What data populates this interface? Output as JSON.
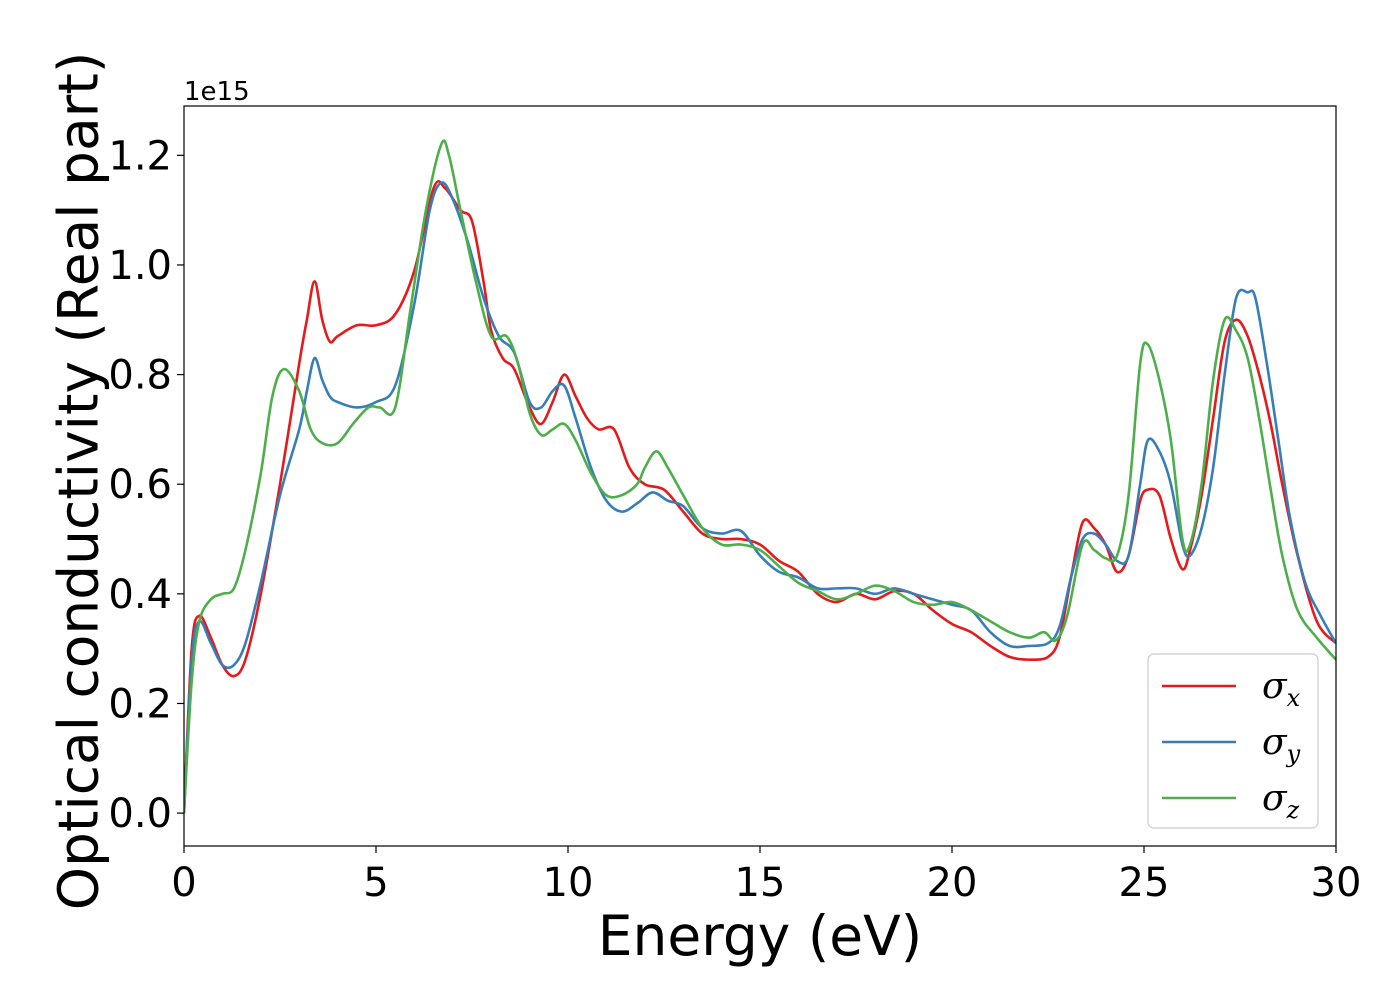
{
  "chart_data": {
    "type": "line",
    "title": "",
    "xlabel": "Energy (eV)",
    "ylabel": "Optical conductivity (Real part)",
    "y_offset_label": "1e15",
    "xlim": [
      0,
      30
    ],
    "ylim": [
      -0.06,
      1.29
    ],
    "xticks": [
      0,
      5,
      10,
      15,
      20,
      25,
      30
    ],
    "yticks": [
      0.0,
      0.2,
      0.4,
      0.6,
      0.8,
      1.0,
      1.2
    ],
    "xtick_labels": [
      "0",
      "5",
      "10",
      "15",
      "20",
      "25",
      "30"
    ],
    "ytick_labels": [
      "0.0",
      "0.2",
      "0.4",
      "0.6",
      "0.8",
      "1.0",
      "1.2"
    ],
    "grid": false,
    "legend_position": "lower-right",
    "series": [
      {
        "name": "σx",
        "symbol": "σ",
        "subscript": "x",
        "color": "#e41a1c",
        "x": [
          0,
          0.2,
          0.4,
          0.7,
          1.0,
          1.3,
          1.6,
          2.0,
          2.5,
          3.0,
          3.2,
          3.4,
          3.6,
          3.8,
          4.0,
          4.5,
          5.0,
          5.5,
          6.0,
          6.5,
          6.8,
          7.2,
          7.5,
          7.8,
          8.0,
          8.3,
          8.6,
          9.0,
          9.3,
          9.6,
          9.9,
          10.2,
          10.5,
          10.8,
          11.2,
          11.6,
          12.0,
          12.5,
          13.0,
          13.5,
          14.0,
          14.5,
          15.0,
          15.5,
          16.0,
          16.5,
          17.0,
          17.5,
          18.0,
          18.5,
          19.0,
          19.5,
          20.0,
          20.5,
          21.0,
          21.5,
          22.0,
          22.5,
          22.8,
          23.1,
          23.4,
          23.7,
          24.0,
          24.3,
          24.6,
          24.9,
          25.1,
          25.4,
          25.7,
          26.0,
          26.2,
          26.5,
          26.8,
          27.1,
          27.4,
          27.7,
          28.0,
          28.3,
          28.6,
          29.0,
          29.5,
          30.0
        ],
        "values": [
          0.0,
          0.3,
          0.36,
          0.32,
          0.27,
          0.25,
          0.28,
          0.4,
          0.6,
          0.82,
          0.9,
          0.97,
          0.9,
          0.86,
          0.87,
          0.89,
          0.89,
          0.91,
          0.99,
          1.14,
          1.14,
          1.1,
          1.08,
          0.97,
          0.88,
          0.83,
          0.81,
          0.74,
          0.71,
          0.75,
          0.8,
          0.76,
          0.72,
          0.7,
          0.7,
          0.63,
          0.6,
          0.59,
          0.55,
          0.51,
          0.5,
          0.5,
          0.49,
          0.46,
          0.44,
          0.4,
          0.385,
          0.4,
          0.39,
          0.405,
          0.4,
          0.37,
          0.345,
          0.33,
          0.305,
          0.285,
          0.28,
          0.285,
          0.32,
          0.43,
          0.53,
          0.52,
          0.49,
          0.44,
          0.47,
          0.57,
          0.59,
          0.58,
          0.5,
          0.445,
          0.48,
          0.58,
          0.72,
          0.86,
          0.9,
          0.87,
          0.8,
          0.71,
          0.6,
          0.47,
          0.35,
          0.31
        ]
      },
      {
        "name": "σy",
        "symbol": "σ",
        "subscript": "y",
        "color": "#377eb8",
        "x": [
          0,
          0.2,
          0.4,
          0.7,
          1.0,
          1.3,
          1.6,
          2.0,
          2.5,
          3.0,
          3.2,
          3.4,
          3.6,
          3.8,
          4.0,
          4.5,
          5.0,
          5.5,
          6.0,
          6.4,
          6.7,
          7.0,
          7.4,
          7.8,
          8.2,
          8.6,
          9.0,
          9.3,
          9.6,
          9.9,
          10.2,
          10.6,
          11.0,
          11.4,
          11.8,
          12.2,
          12.6,
          13.0,
          13.5,
          14.0,
          14.5,
          15.0,
          15.5,
          16.0,
          16.5,
          17.0,
          17.5,
          18.0,
          18.5,
          19.0,
          19.5,
          20.0,
          20.5,
          21.0,
          21.5,
          22.0,
          22.5,
          22.8,
          23.1,
          23.4,
          23.7,
          24.0,
          24.3,
          24.6,
          24.9,
          25.1,
          25.4,
          25.7,
          26.0,
          26.2,
          26.5,
          26.8,
          27.1,
          27.4,
          27.7,
          27.9,
          28.2,
          28.5,
          28.8,
          29.2,
          29.6,
          30.0
        ],
        "values": [
          0.0,
          0.28,
          0.35,
          0.31,
          0.27,
          0.27,
          0.31,
          0.42,
          0.58,
          0.7,
          0.77,
          0.83,
          0.79,
          0.76,
          0.75,
          0.74,
          0.75,
          0.78,
          0.93,
          1.1,
          1.15,
          1.12,
          1.04,
          0.94,
          0.87,
          0.84,
          0.75,
          0.74,
          0.77,
          0.78,
          0.72,
          0.63,
          0.57,
          0.55,
          0.565,
          0.585,
          0.57,
          0.56,
          0.52,
          0.51,
          0.515,
          0.47,
          0.44,
          0.43,
          0.41,
          0.41,
          0.41,
          0.4,
          0.41,
          0.4,
          0.39,
          0.38,
          0.37,
          0.33,
          0.305,
          0.305,
          0.31,
          0.34,
          0.43,
          0.5,
          0.51,
          0.49,
          0.46,
          0.47,
          0.6,
          0.68,
          0.66,
          0.6,
          0.49,
          0.47,
          0.52,
          0.63,
          0.8,
          0.94,
          0.95,
          0.94,
          0.82,
          0.68,
          0.54,
          0.42,
          0.36,
          0.31
        ]
      },
      {
        "name": "σz",
        "symbol": "σ",
        "subscript": "z",
        "color": "#4daf4a",
        "x": [
          0,
          0.2,
          0.4,
          0.7,
          1.0,
          1.3,
          1.6,
          2.0,
          2.3,
          2.6,
          3.0,
          3.3,
          3.6,
          4.0,
          4.4,
          4.8,
          5.1,
          5.5,
          5.9,
          6.3,
          6.7,
          6.9,
          7.2,
          7.6,
          8.0,
          8.4,
          8.7,
          9.0,
          9.3,
          9.6,
          9.9,
          10.2,
          10.6,
          11.0,
          11.4,
          11.8,
          12.0,
          12.3,
          12.6,
          13.0,
          13.5,
          14.0,
          14.5,
          15.0,
          15.5,
          16.0,
          16.5,
          17.0,
          17.5,
          18.0,
          18.5,
          19.0,
          19.5,
          20.0,
          20.5,
          21.0,
          21.5,
          22.0,
          22.4,
          22.7,
          23.0,
          23.4,
          23.7,
          24.0,
          24.3,
          24.6,
          24.9,
          25.1,
          25.4,
          25.7,
          26.0,
          26.2,
          26.5,
          26.8,
          27.1,
          27.4,
          27.7,
          28.0,
          28.3,
          28.6,
          29.0,
          29.5,
          30.0
        ],
        "values": [
          0.0,
          0.24,
          0.35,
          0.39,
          0.4,
          0.41,
          0.48,
          0.62,
          0.76,
          0.81,
          0.77,
          0.7,
          0.675,
          0.675,
          0.71,
          0.74,
          0.74,
          0.74,
          0.92,
          1.1,
          1.22,
          1.2,
          1.1,
          0.97,
          0.87,
          0.87,
          0.82,
          0.73,
          0.69,
          0.7,
          0.71,
          0.68,
          0.62,
          0.58,
          0.58,
          0.6,
          0.63,
          0.66,
          0.63,
          0.58,
          0.52,
          0.49,
          0.49,
          0.48,
          0.45,
          0.42,
          0.405,
          0.39,
          0.4,
          0.415,
          0.405,
          0.385,
          0.38,
          0.385,
          0.37,
          0.35,
          0.33,
          0.32,
          0.33,
          0.315,
          0.36,
          0.49,
          0.48,
          0.465,
          0.47,
          0.58,
          0.82,
          0.855,
          0.79,
          0.68,
          0.5,
          0.49,
          0.6,
          0.79,
          0.9,
          0.88,
          0.83,
          0.72,
          0.59,
          0.47,
          0.37,
          0.32,
          0.28
        ]
      }
    ]
  }
}
